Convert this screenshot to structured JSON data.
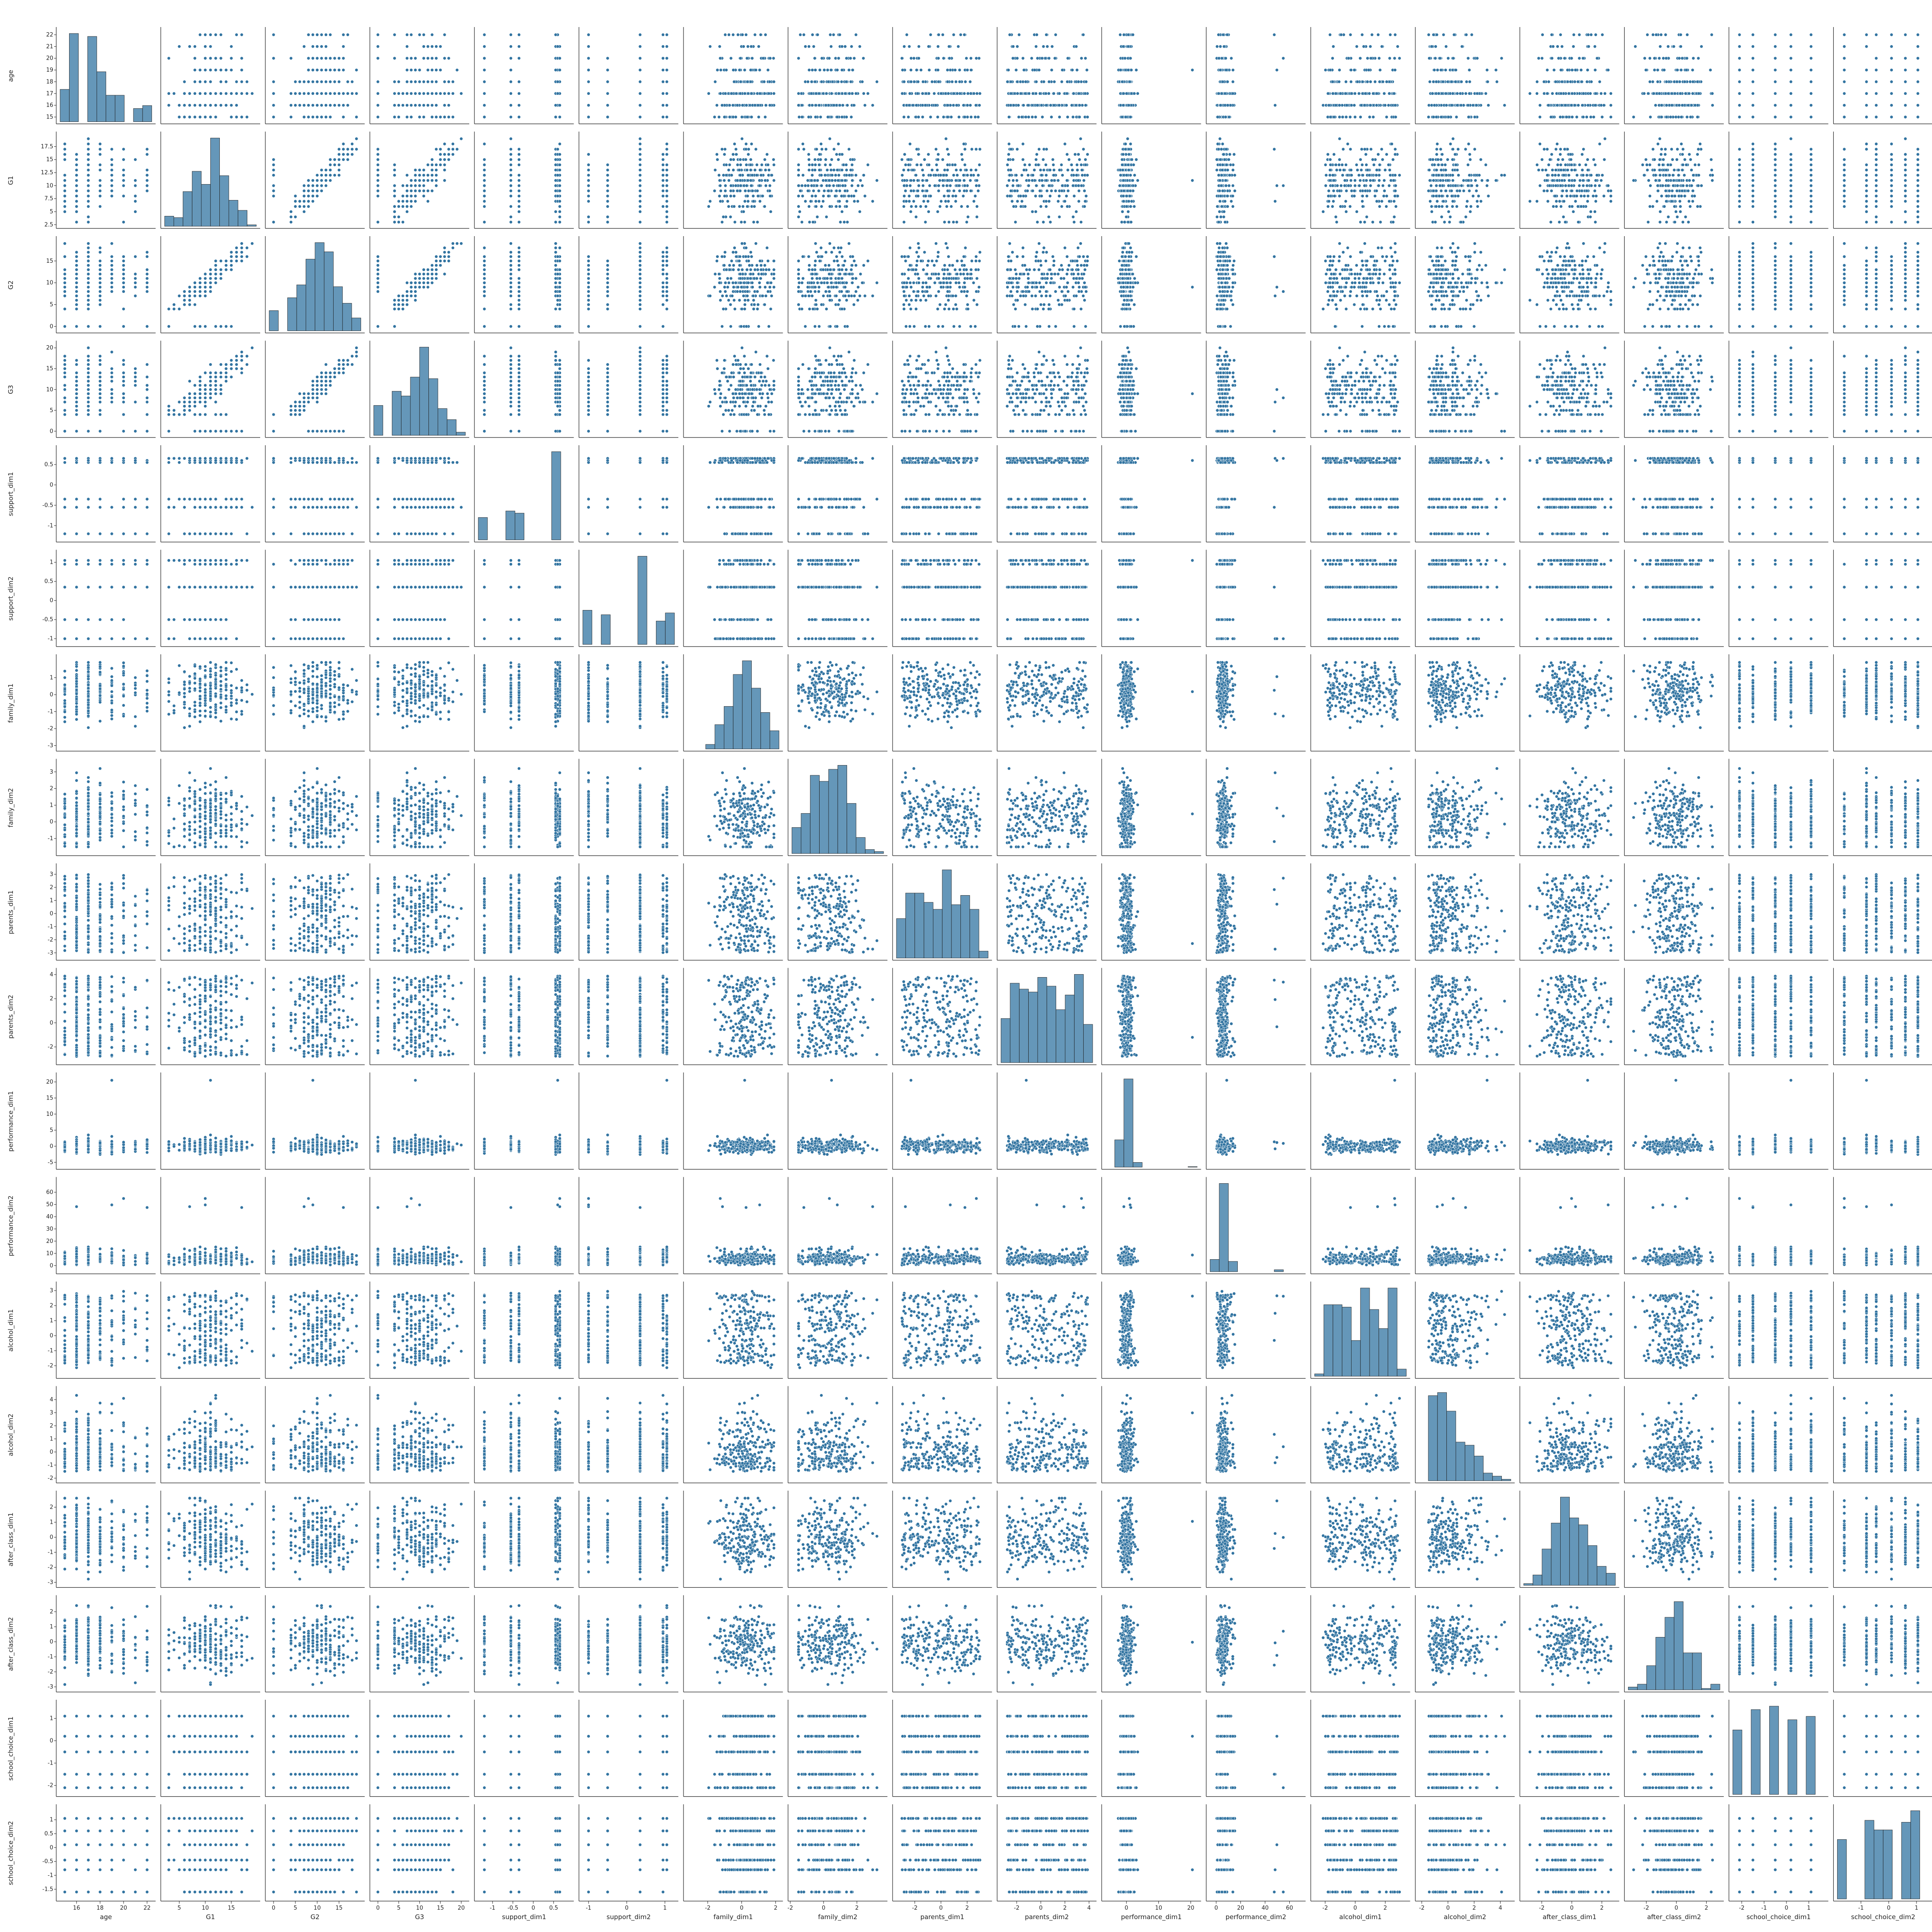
{
  "chart_data": {
    "type": "scatter",
    "subtype": "pairplot",
    "title": "",
    "point_color": "#3274a1",
    "variables": [
      {
        "name": "age",
        "range": [
          14.6,
          22.4
        ],
        "ticks": [
          16,
          18,
          20,
          22
        ],
        "yticks": [
          15,
          16,
          17,
          18,
          19,
          20,
          21,
          22
        ]
      },
      {
        "name": "G1",
        "range": [
          2.2,
          19.8
        ],
        "ticks": [
          5,
          10,
          15
        ],
        "yticks": [
          2.5,
          5.0,
          7.5,
          10.0,
          12.5,
          15.0,
          17.5
        ]
      },
      {
        "name": "G2",
        "range": [
          -1,
          20
        ],
        "ticks": [
          0,
          5,
          10,
          15
        ],
        "yticks": [
          0,
          5,
          10,
          15
        ]
      },
      {
        "name": "G3",
        "range": [
          -1,
          21
        ],
        "ticks": [
          0,
          5,
          10,
          15,
          20
        ],
        "yticks": [
          0,
          5,
          10,
          15,
          20
        ]
      },
      {
        "name": "support_dim1",
        "range": [
          -1.35,
          0.9
        ],
        "ticks": [
          -1.0,
          -0.5,
          0.0,
          0.5
        ],
        "yticks": [
          -1.0,
          -0.5,
          0.0,
          0.5
        ]
      },
      {
        "name": "support_dim2",
        "range": [
          -1.15,
          1.25
        ],
        "ticks": [
          -1,
          0,
          1
        ],
        "yticks": [
          -1.0,
          -0.5,
          0.0,
          0.5,
          1.0
        ]
      },
      {
        "name": "family_dim1",
        "range": [
          -3.2,
          2.2
        ],
        "ticks": [
          -2,
          0,
          2
        ],
        "yticks": [
          -3,
          -2,
          -1,
          0,
          1
        ]
      },
      {
        "name": "family_dim2",
        "range": [
          -1.9,
          3.6
        ],
        "ticks": [
          -2,
          0,
          2
        ],
        "yticks": [
          -1,
          0,
          1,
          2,
          3
        ]
      },
      {
        "name": "parents_dim1",
        "range": [
          -3.4,
          3.6
        ],
        "ticks": [
          -2,
          0,
          2
        ],
        "yticks": [
          -3,
          -2,
          -1,
          0,
          1,
          2,
          3
        ]
      },
      {
        "name": "parents_dim2",
        "range": [
          -3.3,
          4.3
        ],
        "ticks": [
          -2,
          0,
          2,
          4
        ],
        "yticks": [
          -2,
          0,
          2,
          4
        ]
      },
      {
        "name": "performance_dim1",
        "range": [
          -6.5,
          22
        ],
        "ticks": [
          0,
          10,
          20
        ],
        "yticks": [
          -5,
          0,
          5,
          10,
          15,
          20
        ]
      },
      {
        "name": "performance_dim2",
        "range": [
          -5,
          70
        ],
        "ticks": [
          0,
          20,
          40,
          60
        ],
        "yticks": [
          0,
          10,
          20,
          30,
          40,
          50,
          60
        ]
      },
      {
        "name": "alcohol_dim1",
        "range": [
          -2.7,
          3.4
        ],
        "ticks": [
          -2,
          0,
          2
        ],
        "yticks": [
          -2,
          -1,
          0,
          1,
          2,
          3
        ]
      },
      {
        "name": "alcohol_dim2",
        "range": [
          -2.2,
          4.8
        ],
        "ticks": [
          -2,
          0,
          2,
          4
        ],
        "yticks": [
          -2,
          -1,
          0,
          1,
          2,
          3,
          4
        ]
      },
      {
        "name": "after_class_dim1",
        "range": [
          -3.2,
          2.9
        ],
        "ticks": [
          -2,
          0,
          2
        ],
        "yticks": [
          -3,
          -2,
          -1,
          0,
          1,
          2
        ]
      },
      {
        "name": "after_class_dim2",
        "range": [
          -3.2,
          2.9
        ],
        "ticks": [
          -2,
          0,
          2
        ],
        "yticks": [
          -3,
          -2,
          -1,
          0,
          1,
          2
        ]
      },
      {
        "name": "school_choice_dim1",
        "range": [
          -2.4,
          1.7
        ],
        "ticks": [
          -2,
          -1,
          0,
          1
        ],
        "yticks": [
          -2,
          -1,
          0,
          1
        ]
      },
      {
        "name": "school_choice_dim2",
        "range": [
          -1.85,
          1.45
        ],
        "ticks": [
          -1,
          0,
          1
        ],
        "yticks": [
          -1.5,
          -1.0,
          -0.5,
          0.0,
          0.5,
          1.0
        ]
      }
    ],
    "distributions": {
      "age": [
        {
          "values": [
            15,
            15,
            15,
            15,
            16,
            16,
            16,
            16,
            16,
            16,
            16,
            16,
            16,
            16,
            17,
            17,
            17,
            17,
            17,
            17,
            17,
            17,
            17,
            18,
            18,
            18,
            18,
            18,
            18,
            18,
            18,
            18,
            19,
            19,
            19,
            19,
            20,
            20,
            21,
            22
          ],
          "weight": 1
        }
      ],
      "G1": [
        {
          "values": [
            3,
            4,
            5,
            5,
            6,
            6,
            6,
            7,
            7,
            7,
            7,
            8,
            8,
            8,
            8,
            8,
            9,
            9,
            9,
            9,
            10,
            10,
            10,
            10,
            10,
            11,
            11,
            11,
            11,
            12,
            12,
            12,
            12,
            13,
            13,
            13,
            14,
            14,
            14,
            15,
            15,
            16,
            16,
            17,
            18,
            19
          ],
          "weight": 1
        }
      ],
      "G2": [
        {
          "values": [
            0,
            0,
            4,
            5,
            5,
            6,
            6,
            7,
            7,
            7,
            8,
            8,
            8,
            9,
            9,
            9,
            9,
            10,
            10,
            10,
            11,
            11,
            11,
            11,
            11,
            12,
            12,
            12,
            13,
            13,
            13,
            14,
            14,
            15,
            15,
            16,
            17,
            18,
            19
          ],
          "weight": 1
        }
      ],
      "G3": [
        {
          "values": [
            0,
            0,
            0,
            0,
            4,
            5,
            6,
            6,
            7,
            7,
            8,
            8,
            8,
            9,
            9,
            9,
            10,
            10,
            10,
            10,
            10,
            10,
            11,
            11,
            11,
            11,
            12,
            12,
            12,
            13,
            13,
            13,
            14,
            14,
            15,
            15,
            16,
            17,
            18,
            19,
            20
          ],
          "weight": 1
        }
      ]
    },
    "notes": ""
  }
}
